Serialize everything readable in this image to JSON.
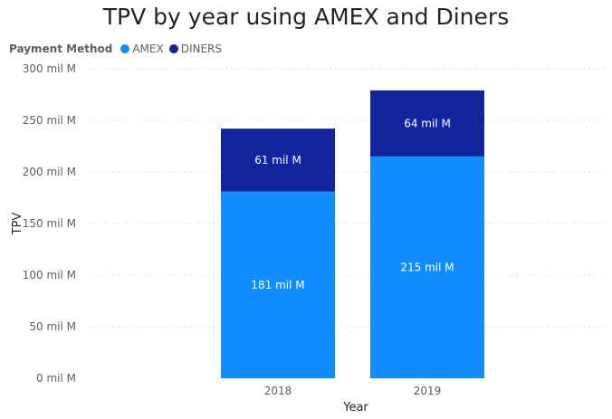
{
  "chart_data": {
    "type": "bar",
    "stacked": true,
    "title": "TPV by year using AMEX and Diners",
    "xlabel": "Year",
    "ylabel": "TPV",
    "categories": [
      "2018",
      "2019"
    ],
    "ylim": [
      0,
      300
    ],
    "yticks": [
      0,
      50,
      100,
      150,
      200,
      250,
      300
    ],
    "ytick_labels": [
      "0 mil M",
      "50 mil M",
      "100 mil M",
      "150 mil M",
      "200 mil M",
      "250 mil M",
      "300 mil M"
    ],
    "grid": true,
    "legend": {
      "title": "Payment Method",
      "position": "top-left"
    },
    "series": [
      {
        "name": "AMEX",
        "color": "#118dff",
        "values": [
          181,
          215
        ],
        "labels": [
          "181 mil M",
          "215 mil M"
        ]
      },
      {
        "name": "DINERS",
        "color": "#12239e",
        "values": [
          61,
          64
        ],
        "labels": [
          "61 mil M",
          "64 mil M"
        ]
      }
    ]
  }
}
